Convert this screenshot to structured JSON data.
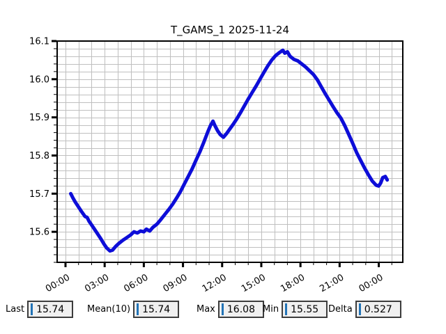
{
  "chart_data": {
    "type": "line",
    "title": "T_GAMS_1 2025-11-24",
    "xlabel": "",
    "ylabel": "",
    "x_unit": "time of day (HH:MM)",
    "xlim_hours": [
      -0.64,
      25.84
    ],
    "ylim": [
      15.52,
      16.1
    ],
    "grid": true,
    "legend": "none",
    "x_major_ticks": [
      {
        "hour": 0,
        "label": "00:00"
      },
      {
        "hour": 3,
        "label": "03:00"
      },
      {
        "hour": 6,
        "label": "06:00"
      },
      {
        "hour": 9,
        "label": "09:00"
      },
      {
        "hour": 12,
        "label": "12:00"
      },
      {
        "hour": 15,
        "label": "15:00"
      },
      {
        "hour": 18,
        "label": "18:00"
      },
      {
        "hour": 21,
        "label": "21:00"
      },
      {
        "hour": 24,
        "label": "00:00"
      }
    ],
    "x_minor_step_hours": 1,
    "y_major_ticks": [
      {
        "value": 16.1,
        "label": "16.1"
      },
      {
        "value": 16.0,
        "label": "16.0"
      },
      {
        "value": 15.9,
        "label": "15.9"
      },
      {
        "value": 15.8,
        "label": "15.8"
      },
      {
        "value": 15.7,
        "label": "15.7"
      },
      {
        "value": 15.6,
        "label": "15.6"
      }
    ],
    "y_minor_step": 0.02,
    "series": [
      {
        "name": "T_GAMS_1",
        "color": "#0d0dd8",
        "line_width": 5,
        "points": [
          [
            0.4,
            15.7
          ],
          [
            0.55,
            15.69
          ],
          [
            0.75,
            15.678
          ],
          [
            1.0,
            15.665
          ],
          [
            1.25,
            15.652
          ],
          [
            1.5,
            15.64
          ],
          [
            1.65,
            15.638
          ],
          [
            1.8,
            15.628
          ],
          [
            2.0,
            15.618
          ],
          [
            2.2,
            15.608
          ],
          [
            2.45,
            15.595
          ],
          [
            2.7,
            15.582
          ],
          [
            2.95,
            15.568
          ],
          [
            3.15,
            15.558
          ],
          [
            3.4,
            15.55
          ],
          [
            3.6,
            15.552
          ],
          [
            3.85,
            15.562
          ],
          [
            4.1,
            15.57
          ],
          [
            4.4,
            15.578
          ],
          [
            4.7,
            15.585
          ],
          [
            5.0,
            15.592
          ],
          [
            5.25,
            15.6
          ],
          [
            5.5,
            15.597
          ],
          [
            5.75,
            15.602
          ],
          [
            6.0,
            15.6
          ],
          [
            6.2,
            15.607
          ],
          [
            6.45,
            15.602
          ],
          [
            6.7,
            15.612
          ],
          [
            7.0,
            15.62
          ],
          [
            7.3,
            15.632
          ],
          [
            7.6,
            15.645
          ],
          [
            7.9,
            15.658
          ],
          [
            8.2,
            15.672
          ],
          [
            8.5,
            15.688
          ],
          [
            8.8,
            15.705
          ],
          [
            9.1,
            15.725
          ],
          [
            9.4,
            15.745
          ],
          [
            9.7,
            15.765
          ],
          [
            10.0,
            15.788
          ],
          [
            10.3,
            15.81
          ],
          [
            10.6,
            15.835
          ],
          [
            10.9,
            15.862
          ],
          [
            11.1,
            15.878
          ],
          [
            11.3,
            15.89
          ],
          [
            11.45,
            15.878
          ],
          [
            11.65,
            15.865
          ],
          [
            11.85,
            15.855
          ],
          [
            12.1,
            15.848
          ],
          [
            12.35,
            15.858
          ],
          [
            12.6,
            15.87
          ],
          [
            12.85,
            15.882
          ],
          [
            13.1,
            15.895
          ],
          [
            13.4,
            15.912
          ],
          [
            13.7,
            15.93
          ],
          [
            14.0,
            15.948
          ],
          [
            14.3,
            15.965
          ],
          [
            14.6,
            15.982
          ],
          [
            14.9,
            16.0
          ],
          [
            15.2,
            16.018
          ],
          [
            15.5,
            16.035
          ],
          [
            15.8,
            16.05
          ],
          [
            16.1,
            16.062
          ],
          [
            16.4,
            16.07
          ],
          [
            16.65,
            16.076
          ],
          [
            16.8,
            16.068
          ],
          [
            17.0,
            16.072
          ],
          [
            17.2,
            16.06
          ],
          [
            17.5,
            16.052
          ],
          [
            17.8,
            16.048
          ],
          [
            18.1,
            16.04
          ],
          [
            18.4,
            16.032
          ],
          [
            18.7,
            16.022
          ],
          [
            19.0,
            16.012
          ],
          [
            19.3,
            15.998
          ],
          [
            19.6,
            15.98
          ],
          [
            19.9,
            15.962
          ],
          [
            20.2,
            15.945
          ],
          [
            20.5,
            15.928
          ],
          [
            20.8,
            15.912
          ],
          [
            21.1,
            15.898
          ],
          [
            21.4,
            15.878
          ],
          [
            21.7,
            15.855
          ],
          [
            22.0,
            15.832
          ],
          [
            22.3,
            15.808
          ],
          [
            22.6,
            15.788
          ],
          [
            22.9,
            15.768
          ],
          [
            23.2,
            15.75
          ],
          [
            23.5,
            15.733
          ],
          [
            23.8,
            15.722
          ],
          [
            24.0,
            15.72
          ],
          [
            24.15,
            15.728
          ],
          [
            24.3,
            15.742
          ],
          [
            24.5,
            15.745
          ],
          [
            24.65,
            15.736
          ]
        ]
      }
    ]
  },
  "stats": [
    {
      "label": "Last",
      "value": "15.74"
    },
    {
      "label": "Mean(10)",
      "value": "15.74"
    },
    {
      "label": "Max",
      "value": "16.08"
    },
    {
      "label": "Min",
      "value": "15.55"
    },
    {
      "label": "Delta",
      "value": "0.527"
    }
  ],
  "colors": {
    "plot_background": "#ffffff",
    "grid": "#bfbfbf",
    "axis": "#000000",
    "line": "#0d0dd8",
    "entry_background": "#f0f0f0",
    "entry_border": "#3c3c3c",
    "entry_cursor": "#2273b6",
    "text": "#000000"
  }
}
